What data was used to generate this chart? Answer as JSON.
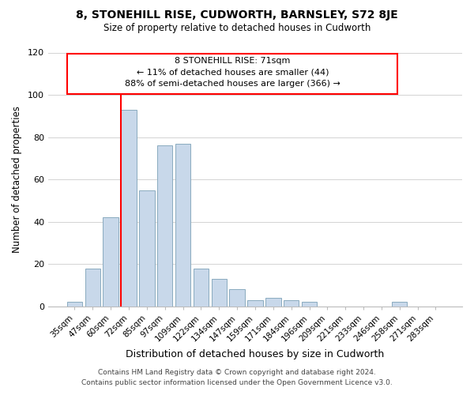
{
  "title": "8, STONEHILL RISE, CUDWORTH, BARNSLEY, S72 8JE",
  "subtitle": "Size of property relative to detached houses in Cudworth",
  "xlabel": "Distribution of detached houses by size in Cudworth",
  "ylabel": "Number of detached properties",
  "bar_color": "#c8d8ea",
  "bar_edge_color": "#8aaabf",
  "categories": [
    "35sqm",
    "47sqm",
    "60sqm",
    "72sqm",
    "85sqm",
    "97sqm",
    "109sqm",
    "122sqm",
    "134sqm",
    "147sqm",
    "159sqm",
    "171sqm",
    "184sqm",
    "196sqm",
    "209sqm",
    "221sqm",
    "233sqm",
    "246sqm",
    "258sqm",
    "271sqm",
    "283sqm"
  ],
  "values": [
    2,
    18,
    42,
    93,
    55,
    76,
    77,
    18,
    13,
    8,
    3,
    4,
    3,
    2,
    0,
    0,
    0,
    0,
    2,
    0,
    0
  ],
  "ylim": [
    0,
    120
  ],
  "yticks": [
    0,
    20,
    40,
    60,
    80,
    100,
    120
  ],
  "red_line_index": 3,
  "ann_line1": "8 STONEHILL RISE: 71sqm",
  "ann_line2": "← 11% of detached houses are smaller (44)",
  "ann_line3": "88% of semi-detached houses are larger (366) →",
  "footer_line1": "Contains HM Land Registry data © Crown copyright and database right 2024.",
  "footer_line2": "Contains public sector information licensed under the Open Government Licence v3.0.",
  "background_color": "#ffffff",
  "grid_color": "#cccccc"
}
